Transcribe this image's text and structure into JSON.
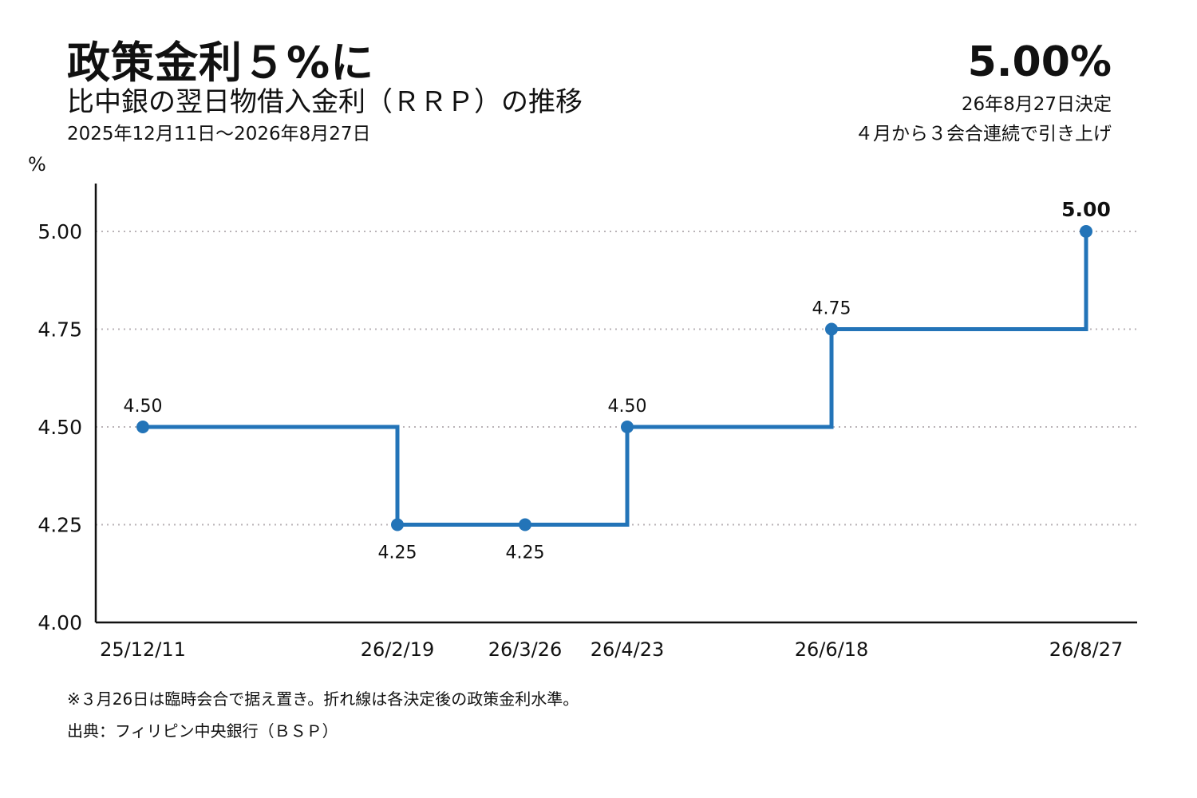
{
  "header": {
    "title": "政策金利５%に",
    "subtitle": "比中銀の翌日物借入金利（ＲＲＰ）の推移",
    "period": "2025年12月11日～2026年8月27日"
  },
  "kpi": {
    "value": "5.00%",
    "date": "26年8月27日決定",
    "note": "４月から３会合連続で引き上げ"
  },
  "footer": {
    "note": "※３月26日は臨時会合で据え置き。折れ線は各決定後の政策金利水準。",
    "source": "出典：フィリピン中央銀行（ＢＳＰ）"
  },
  "chart_data": {
    "type": "line",
    "step": true,
    "ylabel": "%",
    "ylim": [
      4.0,
      5.0
    ],
    "yticks": [
      "4.00",
      "4.25",
      "4.50",
      "4.75",
      "5.00"
    ],
    "grid": "horizontal dotted",
    "series": [
      {
        "x": [
          "25/12/11",
          "26/2/19",
          "26/3/26",
          "26/4/23",
          "26/6/18",
          "26/8/27"
        ],
        "y": [
          4.5,
          4.25,
          4.25,
          4.5,
          4.75,
          5.0
        ],
        "labels": [
          "4.50",
          "4.25",
          "4.25",
          "4.50",
          "4.75",
          "5.00"
        ]
      }
    ],
    "colors": {
      "line": "#2374b8",
      "axis": "#111111",
      "grid": "#b9b3b7"
    }
  }
}
